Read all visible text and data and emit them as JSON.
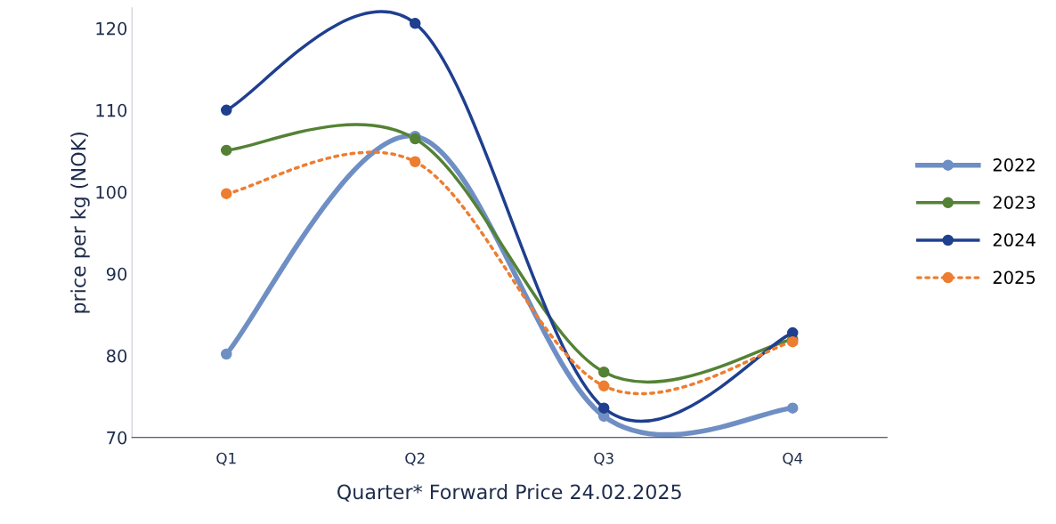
{
  "chart_data": {
    "type": "line",
    "ylabel": "price per kg (NOK)",
    "xlabel": "Quarter* Forward Price 24.02.2025",
    "categories": [
      "Q1",
      "Q2",
      "Q3",
      "Q4"
    ],
    "ylim": [
      70,
      122.5
    ],
    "yticks": [
      70,
      80,
      90,
      100,
      110,
      120
    ],
    "grid": false,
    "legend": "right",
    "marker": "circle",
    "series": [
      {
        "name": "2022",
        "color": "#6f8fc4",
        "values": [
          80.2,
          106.8,
          72.6,
          73.6
        ]
      },
      {
        "name": "2023",
        "color": "#548235",
        "values": [
          105.1,
          106.5,
          78.0,
          82.0
        ]
      },
      {
        "name": "2024",
        "color": "#1f3f8f",
        "values": [
          110.0,
          120.6,
          73.6,
          82.8
        ]
      },
      {
        "name": "2025",
        "color": "#ed7d31",
        "values": [
          99.8,
          103.7,
          76.3,
          81.7
        ],
        "line_style": "dotted"
      }
    ]
  }
}
